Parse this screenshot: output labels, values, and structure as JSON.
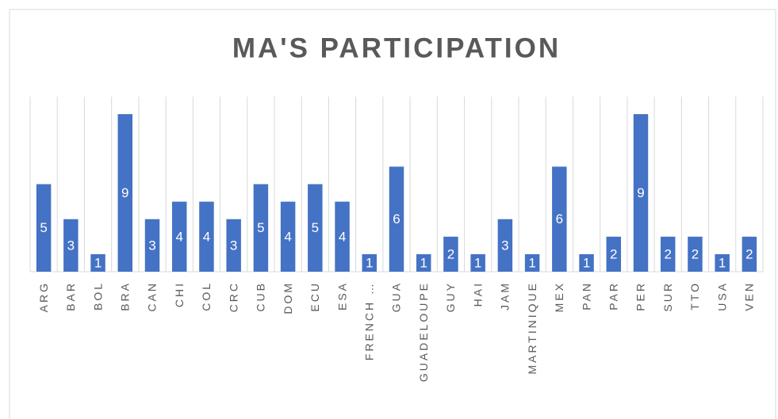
{
  "chart_data": {
    "type": "bar",
    "title": "MA'S PARTICIPATION",
    "categories": [
      "ARG",
      "BAR",
      "BOL",
      "BRA",
      "CAN",
      "CHI",
      "COL",
      "CRC",
      "CUB",
      "DOM",
      "ECU",
      "ESA",
      "FRENCH …",
      "GUA",
      "GUADELOUPE",
      "GUY",
      "HAI",
      "JAM",
      "MARTINIQUE",
      "MEX",
      "PAN",
      "PAR",
      "PER",
      "SUR",
      "TTO",
      "USA",
      "VEN"
    ],
    "values": [
      5,
      3,
      1,
      9,
      3,
      4,
      4,
      3,
      5,
      4,
      5,
      4,
      1,
      6,
      1,
      2,
      1,
      3,
      1,
      6,
      1,
      2,
      9,
      2,
      2,
      1,
      2
    ],
    "color": "#4472c4",
    "ylim": [
      0,
      10
    ],
    "grid": true
  }
}
